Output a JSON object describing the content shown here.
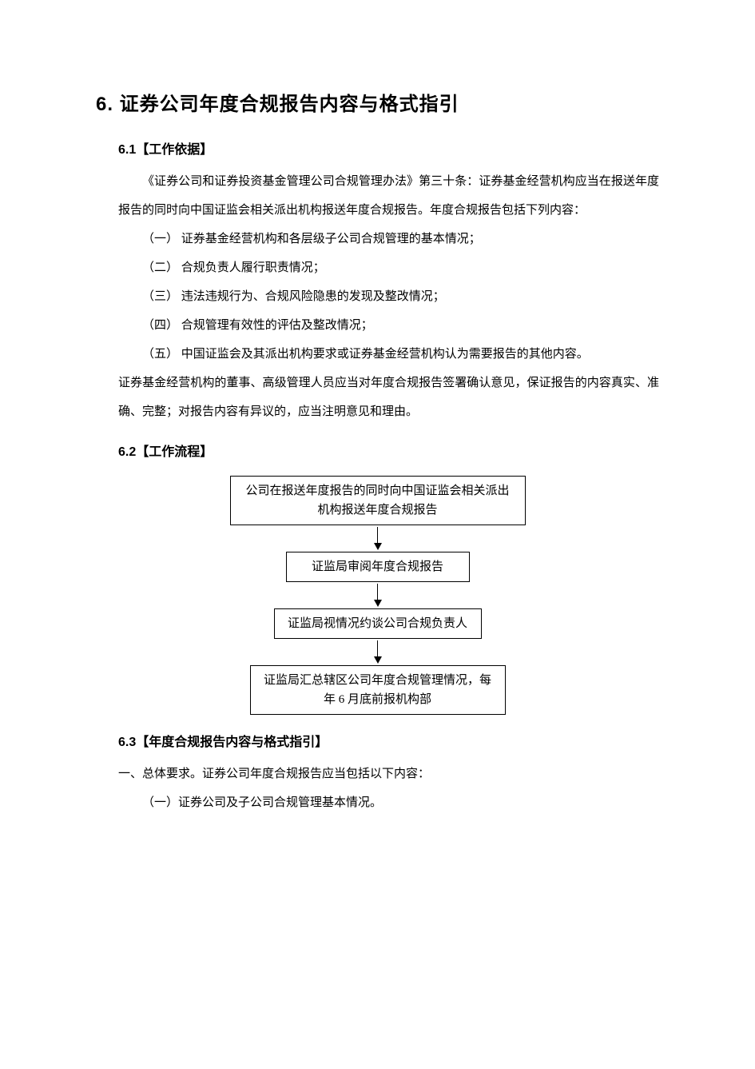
{
  "title": "6. 证券公司年度合规报告内容与格式指引",
  "section61": {
    "heading": "6.1【工作依据】",
    "intro": "《证券公司和证券投资基金管理公司合规管理办法》第三十条：证券基金经营机构应当在报送年度报告的同时向中国证监会相关派出机构报送年度合规报告。年度合规报告包括下列内容：",
    "items": [
      "（一） 证券基金经营机构和各层级子公司合规管理的基本情况；",
      "（二） 合规负责人履行职责情况；",
      "（三） 违法违规行为、合规风险隐患的发现及整改情况；",
      "（四） 合规管理有效性的评估及整改情况；",
      "（五） 中国证监会及其派出机构要求或证券基金经营机构认为需要报告的其他内容。"
    ],
    "closing": "证券基金经营机构的董事、高级管理人员应当对年度合规报告签署确认意见，保证报告的内容真实、准确、完整；对报告内容有异议的，应当注明意见和理由。"
  },
  "section62": {
    "heading": "6.2【工作流程】",
    "flowchart": {
      "nodes": [
        {
          "text": "公司在报送年度报告的同时向中国证监会相关派出机构报送年度合规报告",
          "widthClass": "box-w1"
        },
        {
          "text": "证监局审阅年度合规报告",
          "widthClass": "box-w2"
        },
        {
          "text": "证监局视情况约谈公司合规负责人",
          "widthClass": "box-w3"
        },
        {
          "text": "证监局汇总辖区公司年度合规管理情况，每年 6 月底前报机构部",
          "widthClass": "box-w4"
        }
      ],
      "border_color": "#000000",
      "arrow_color": "#000000",
      "background_color": "#ffffff",
      "font_size": 15
    }
  },
  "section63": {
    "heading": "6.3【年度合规报告内容与格式指引】",
    "lead": "一、总体要求。证券公司年度合规报告应当包括以下内容：",
    "items": [
      "（一）证券公司及子公司合规管理基本情况。"
    ]
  },
  "colors": {
    "text": "#000000",
    "background": "#ffffff"
  },
  "typography": {
    "title_fontsize": 24,
    "heading_fontsize": 16,
    "body_fontsize": 15,
    "line_height": 2.4
  }
}
